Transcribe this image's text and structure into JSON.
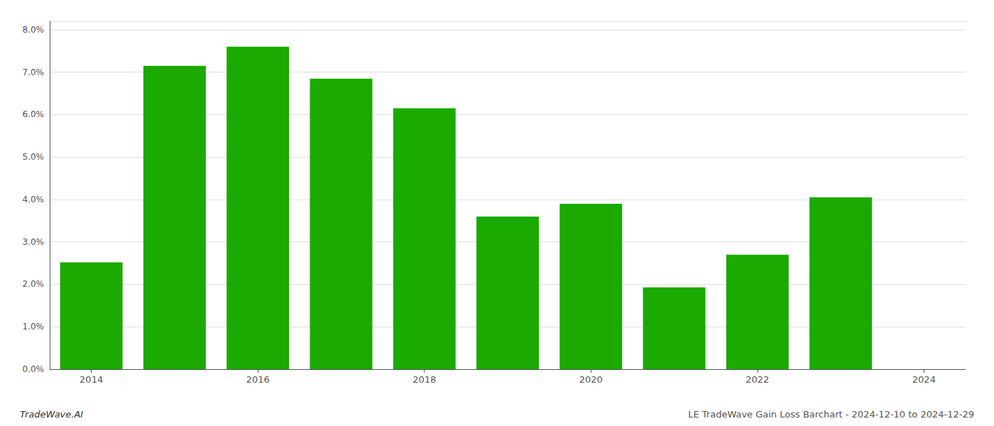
{
  "chart_data": {
    "type": "bar",
    "x": [
      2014,
      2015,
      2016,
      2017,
      2018,
      2019,
      2020,
      2021,
      2022,
      2023
    ],
    "values": [
      0.0252,
      0.0715,
      0.076,
      0.0685,
      0.0615,
      0.036,
      0.039,
      0.0193,
      0.027,
      0.0405
    ],
    "color": "#1aaa00",
    "xlim": [
      2013.5,
      2024.5
    ],
    "xticks": [
      2014,
      2016,
      2018,
      2020,
      2022,
      2024
    ],
    "ylim": [
      0,
      0.082
    ],
    "yticks": [
      {
        "value": 0,
        "label": "0.0%"
      },
      {
        "value": 0.01,
        "label": "1.0%"
      },
      {
        "value": 0.02,
        "label": "2.0%"
      },
      {
        "value": 0.03,
        "label": "3.0%"
      },
      {
        "value": 0.04,
        "label": "4.0%"
      },
      {
        "value": 0.05,
        "label": "5.0%"
      },
      {
        "value": 0.06,
        "label": "6.0%"
      },
      {
        "value": 0.07,
        "label": "7.0%"
      },
      {
        "value": 0.08,
        "label": "8.0%"
      }
    ],
    "grid": true,
    "annotations": [
      "TradeWave.AI",
      "LE TradeWave Gain Loss Barchart - 2024-12-10 to 2024-12-29"
    ]
  }
}
